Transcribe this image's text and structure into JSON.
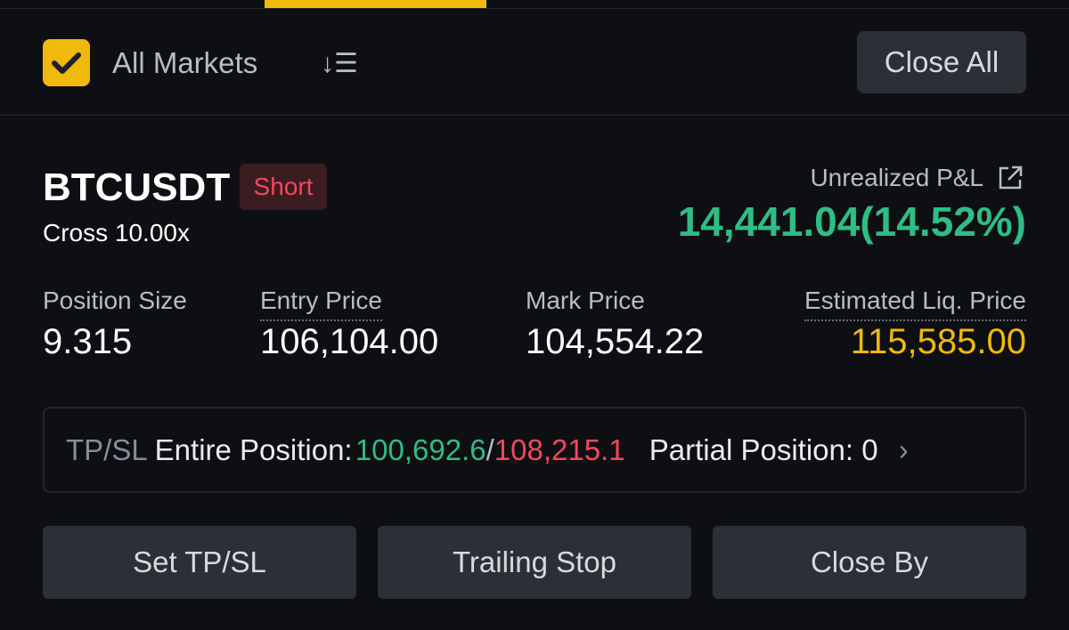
{
  "header": {
    "all_markets_label": "All Markets",
    "all_markets_checked": true,
    "close_all_label": "Close All",
    "sort_icon": "sort-list-icon"
  },
  "position": {
    "symbol": "BTCUSDT",
    "side": "Short",
    "margin_mode": "Cross 10.00x",
    "unrealized_pnl_label": "Unrealized P&L",
    "unrealized_pnl": "14,441.04(14.52%)",
    "stats": [
      {
        "label": "Position Size",
        "value": "9.315"
      },
      {
        "label": "Entry Price",
        "value": "106,104.00"
      },
      {
        "label": "Mark Price",
        "value": "104,554.22"
      },
      {
        "label": "Estimated Liq. Price",
        "value": "115,585.00"
      }
    ],
    "tpsl": {
      "label": "TP/SL",
      "entire_label": "Entire Position:",
      "tp": "100,692.6",
      "separator": "/",
      "sl": "108,215.1",
      "partial_label": "Partial Position:",
      "partial_value": "0"
    }
  },
  "buttons": {
    "set_tpsl": "Set TP/SL",
    "trailing_stop": "Trailing Stop",
    "close_by": "Close By"
  },
  "colors": {
    "accent": "#f0b90b",
    "profit": "#2ebd85",
    "loss": "#f6465d"
  }
}
